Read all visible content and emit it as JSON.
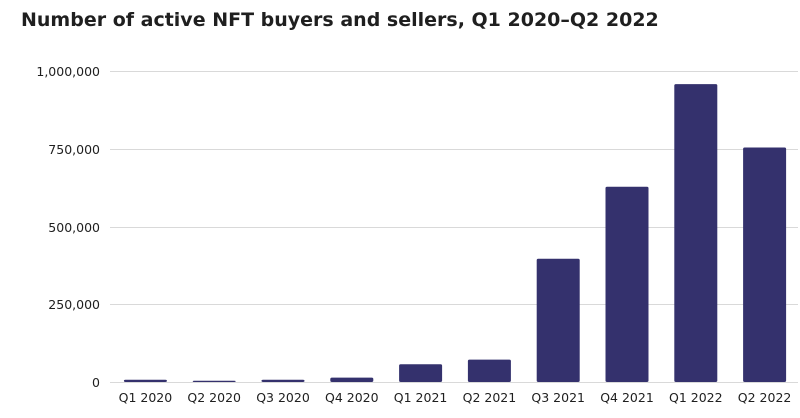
{
  "chart_data": {
    "type": "bar",
    "title": "Number of active NFT buyers and sellers, Q1 2020–Q2 2022",
    "xlabel": "",
    "ylabel": "",
    "categories": [
      "Q1 2020",
      "Q2 2020",
      "Q3 2020",
      "Q4 2020",
      "Q1 2021",
      "Q2 2021",
      "Q3 2021",
      "Q4 2021",
      "Q1 2022",
      "Q2 2022"
    ],
    "values": [
      7000,
      4000,
      7000,
      14000,
      57000,
      72000,
      396000,
      628000,
      958000,
      754000
    ],
    "ylim": [
      0,
      1000000
    ],
    "yticks": [
      0,
      250000,
      500000,
      750000,
      1000000
    ],
    "ytick_labels": [
      "0",
      "250,000",
      "500,000",
      "750,000",
      "1,000,000"
    ],
    "grid": true,
    "bar_color": "#34316d",
    "grid_color": "#d9d9d9"
  }
}
